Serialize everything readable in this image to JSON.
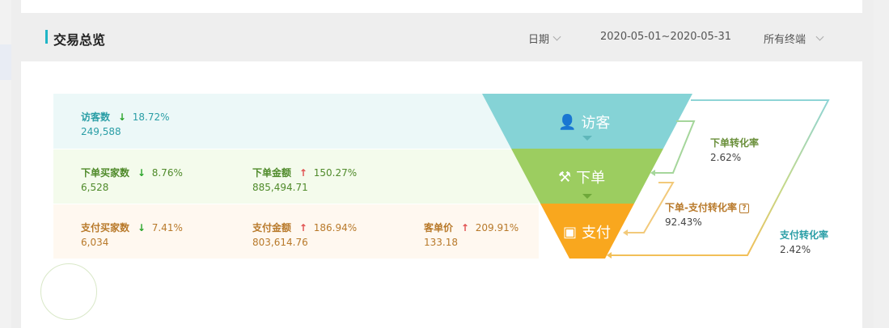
{
  "header": {
    "title": "交易总览",
    "filters": {
      "date_label": "日期",
      "date_range": "2020-05-01~2020-05-31",
      "terminal": "所有终端"
    }
  },
  "rows": {
    "visitor": {
      "metrics": [
        {
          "label": "访客数",
          "trend": "down",
          "pct": "18.72%",
          "value": "249,588"
        }
      ]
    },
    "order": {
      "metrics": [
        {
          "label": "下单买家数",
          "trend": "down",
          "pct": "8.76%",
          "value": "6,528"
        },
        {
          "label": "下单金额",
          "trend": "up",
          "pct": "150.27%",
          "value": "885,494.71"
        }
      ]
    },
    "pay": {
      "metrics": [
        {
          "label": "支付买家数",
          "trend": "down",
          "pct": "7.41%",
          "value": "6,034"
        },
        {
          "label": "支付金额",
          "trend": "up",
          "pct": "186.94%",
          "value": "803,614.76"
        },
        {
          "label": "客单价",
          "trend": "up",
          "pct": "209.91%",
          "value": "133.18"
        }
      ]
    }
  },
  "funnel": {
    "visitor_label": "访客",
    "order_label": "下单",
    "pay_label": "支付",
    "icons": {
      "visitor": "user-icon",
      "order": "gavel-icon",
      "pay": "wallet-icon"
    },
    "colors": {
      "visitor": "#85d3d6",
      "order": "#9ccd60",
      "pay": "#f9a71e"
    }
  },
  "rates": {
    "order_rate_label": "下单转化率",
    "order_rate_value": "2.62%",
    "order_pay_rate_label": "下单-支付转化率",
    "order_pay_rate_value": "92.43%",
    "pay_rate_label": "支付转化率",
    "pay_rate_value": "2.42%"
  }
}
